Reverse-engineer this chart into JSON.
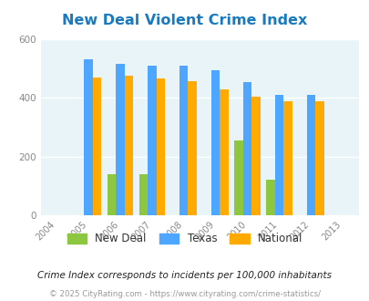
{
  "title": "New Deal Violent Crime Index",
  "title_color": "#1a7abf",
  "years": [
    2004,
    2005,
    2006,
    2007,
    2008,
    2009,
    2010,
    2011,
    2012,
    2013
  ],
  "bar_years": [
    2005,
    2006,
    2007,
    2008,
    2009,
    2010,
    2011,
    2012
  ],
  "new_deal": [
    0,
    140,
    140,
    0,
    0,
    255,
    120,
    0
  ],
  "texas": [
    530,
    515,
    510,
    510,
    495,
    455,
    410,
    410
  ],
  "national": [
    470,
    475,
    465,
    458,
    428,
    405,
    387,
    387
  ],
  "color_new_deal": "#8dc63f",
  "color_texas": "#4da6ff",
  "color_national": "#ffaa00",
  "ylim": [
    0,
    600
  ],
  "yticks": [
    0,
    200,
    400,
    600
  ],
  "bg_color": "#e8f4f8",
  "fig_bg": "#ffffff",
  "footnote1": "Crime Index corresponds to incidents per 100,000 inhabitants",
  "footnote2": "© 2025 CityRating.com - https://www.cityrating.com/crime-statistics/",
  "legend_labels": [
    "New Deal",
    "Texas",
    "National"
  ],
  "bar_width": 0.27
}
